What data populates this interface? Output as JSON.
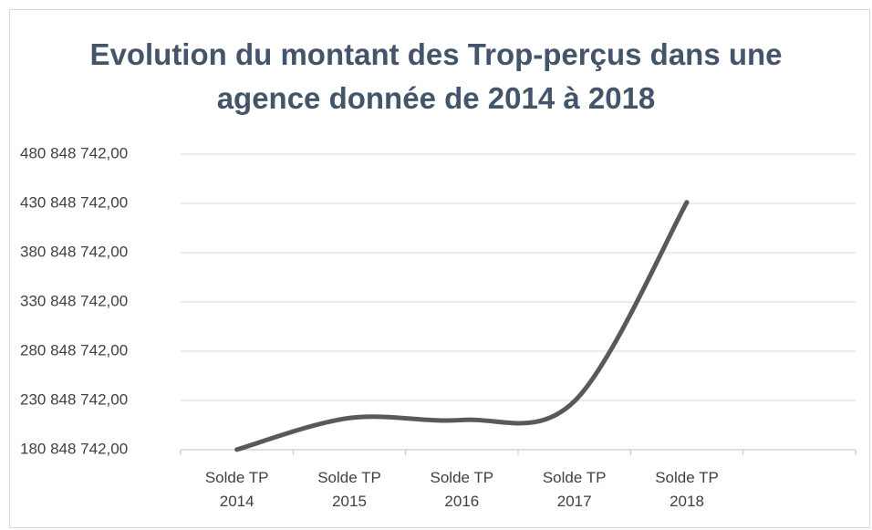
{
  "chart_data": {
    "type": "line",
    "title": "Evolution du montant des Trop-perçus dans une agence donnée de 2014 à 2018",
    "categories": [
      "Solde TP 2014",
      "Solde TP 2015",
      "Solde TP 2016",
      "Solde TP 2017",
      "Solde TP 2018",
      null
    ],
    "series": [
      {
        "name": "Solde TP",
        "color": "#595959",
        "values": [
          181000000,
          213000000,
          211000000,
          230000000,
          432000000,
          null
        ]
      }
    ],
    "ylim": [
      180848742,
      480848742
    ],
    "yticks": [
      {
        "value": 180848742,
        "label": "180 848 742,00"
      },
      {
        "value": 230848742,
        "label": "230 848 742,00"
      },
      {
        "value": 280848742,
        "label": "280 848 742,00"
      },
      {
        "value": 330848742,
        "label": "330 848 742,00"
      },
      {
        "value": 380848742,
        "label": "380 848 742,00"
      },
      {
        "value": 430848742,
        "label": "430 848 742,00"
      },
      {
        "value": 480848742,
        "label": "480 848 742,00"
      }
    ],
    "grid": true,
    "smooth": true
  }
}
